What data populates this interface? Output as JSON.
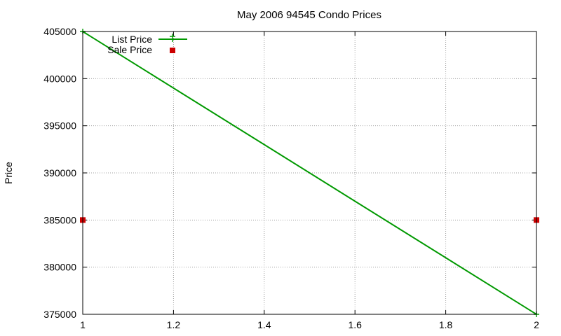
{
  "chart_data": {
    "type": "line",
    "title": "May 2006 94545 Condo Prices",
    "xlabel": "",
    "ylabel": "Price",
    "xlim": [
      1,
      2
    ],
    "ylim": [
      375000,
      405000
    ],
    "xticks": [
      1,
      1.2,
      1.4,
      1.6,
      1.8,
      2
    ],
    "xtick_labels": [
      "1",
      "1.2",
      "1.4",
      "1.6",
      "1.8",
      "2"
    ],
    "yticks": [
      375000,
      380000,
      385000,
      390000,
      395000,
      400000,
      405000
    ],
    "ytick_labels": [
      "375000",
      "380000",
      "385000",
      "390000",
      "395000",
      "400000",
      "405000"
    ],
    "grid": true,
    "legend_position": "top-left",
    "series": [
      {
        "name": "List Price",
        "style": "linespoints",
        "color": "#009900",
        "x": [
          1,
          2
        ],
        "y": [
          405000,
          375000
        ]
      },
      {
        "name": "Sale Price",
        "style": "points",
        "color": "#cc0000",
        "x": [
          1,
          2
        ],
        "y": [
          385000,
          385000
        ]
      }
    ]
  }
}
